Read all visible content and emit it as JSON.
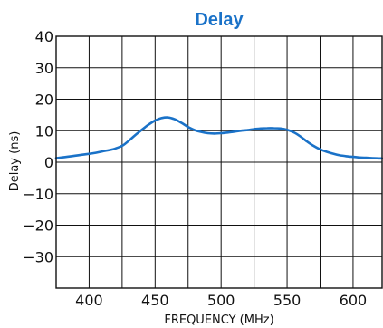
{
  "chart_data": {
    "type": "line",
    "title": "Delay",
    "xlabel": "FREQUENCY (MHz)",
    "ylabel": "Delay (ns)",
    "xlim": [
      375,
      622
    ],
    "ylim": [
      -40,
      40
    ],
    "x_ticks": [
      400,
      450,
      500,
      550,
      600
    ],
    "x_tick_labels": [
      "400",
      "450",
      "500",
      "550",
      "600"
    ],
    "y_ticks": [
      40,
      30,
      20,
      10,
      0,
      -10,
      -20,
      -30
    ],
    "y_tick_labels": [
      "40",
      "30",
      "20",
      "10",
      "0",
      "−10",
      "−20",
      "−30"
    ],
    "x_grid": [
      400,
      425,
      450,
      475,
      500,
      525,
      550,
      575,
      600
    ],
    "y_grid": [
      30,
      20,
      10,
      0,
      -10,
      -20,
      -30
    ],
    "grid": true,
    "legend": "none",
    "series": [
      {
        "color": "#1a72c8",
        "x": [
          375,
          385,
          395,
          405,
          412,
          418,
          425,
          430,
          435,
          440,
          445,
          450,
          455,
          460,
          465,
          470,
          475,
          480,
          485,
          490,
          495,
          500,
          505,
          510,
          515,
          520,
          525,
          530,
          535,
          540,
          545,
          550,
          555,
          560,
          565,
          570,
          575,
          580,
          585,
          590,
          595,
          600,
          605,
          610,
          615,
          622
        ],
        "y": [
          1.3,
          1.8,
          2.4,
          3.0,
          3.6,
          4.1,
          5.2,
          6.8,
          8.6,
          10.3,
          11.9,
          13.2,
          14.0,
          14.2,
          13.6,
          12.5,
          11.2,
          10.2,
          9.6,
          9.2,
          9.1,
          9.2,
          9.4,
          9.7,
          10.0,
          10.2,
          10.5,
          10.7,
          10.8,
          10.8,
          10.7,
          10.3,
          9.5,
          8.2,
          6.6,
          5.2,
          4.1,
          3.3,
          2.7,
          2.2,
          1.9,
          1.7,
          1.5,
          1.4,
          1.3,
          1.2
        ]
      }
    ]
  }
}
